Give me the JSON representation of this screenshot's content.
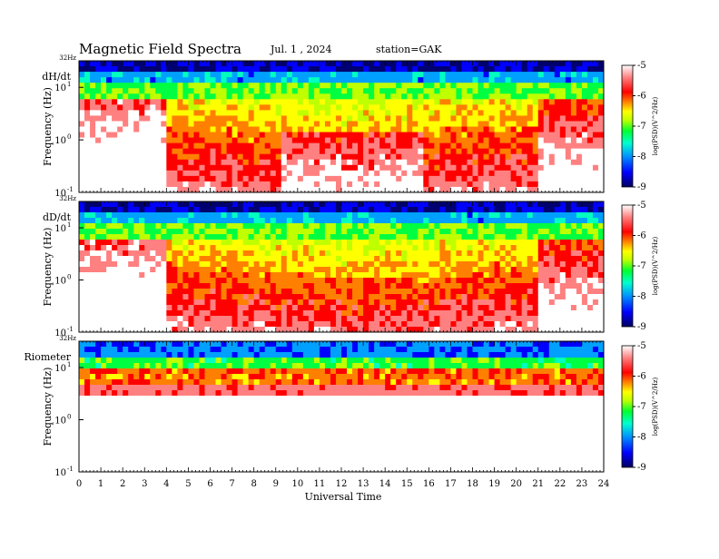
{
  "header": {
    "title": "Magnetic  Field  Spectra",
    "date": "Jul.  1  , 2024",
    "station": "station=GAK"
  },
  "colors": {
    "scale": [
      "#000070",
      "#0000ff",
      "#00a0ff",
      "#00ffc0",
      "#00ff40",
      "#c0ff00",
      "#ffff00",
      "#ff8000",
      "#ff0000",
      "#ff8080",
      "#ffffff"
    ]
  },
  "chart_data": [
    {
      "type": "heatmap",
      "signal": "dH/dt",
      "ylabel": "Frequency (Hz)",
      "xlabel": "Universal Time",
      "top_label": "32Hz",
      "y_ticks": [
        {
          "label": "10",
          "exp": "1"
        },
        {
          "label": "10",
          "exp": "0"
        },
        {
          "label": "10",
          "exp": "-1"
        }
      ],
      "x_ticks": [
        "0",
        "1",
        "2",
        "3",
        "4",
        "5",
        "6",
        "7",
        "8",
        "9",
        "10",
        "11",
        "12",
        "13",
        "14",
        "15",
        "16",
        "17",
        "18",
        "19",
        "20",
        "21",
        "22",
        "23",
        "24"
      ],
      "xlim": [
        0,
        24
      ],
      "ylim": [
        0.1,
        32
      ],
      "yscale": "log",
      "colorbar": {
        "label": "log(PSD)(V^2/Hz)",
        "ticks": [
          "-5",
          "-6",
          "-7",
          "-8",
          "-9"
        ],
        "range": [
          -9,
          -5
        ]
      }
    },
    {
      "type": "heatmap",
      "signal": "dD/dt",
      "ylabel": "Frequency (Hz)",
      "xlabel": "Universal Time",
      "top_label": "32Hz",
      "y_ticks": [
        {
          "label": "10",
          "exp": "1"
        },
        {
          "label": "10",
          "exp": "0"
        },
        {
          "label": "10",
          "exp": "-1"
        }
      ],
      "x_ticks": [
        "0",
        "1",
        "2",
        "3",
        "4",
        "5",
        "6",
        "7",
        "8",
        "9",
        "10",
        "11",
        "12",
        "13",
        "14",
        "15",
        "16",
        "17",
        "18",
        "19",
        "20",
        "21",
        "22",
        "23",
        "24"
      ],
      "xlim": [
        0,
        24
      ],
      "ylim": [
        0.1,
        32
      ],
      "yscale": "log",
      "colorbar": {
        "label": "log(PSD)(V^2/Hz)",
        "ticks": [
          "-5",
          "-6",
          "-7",
          "-8",
          "-9"
        ],
        "range": [
          -9,
          -5
        ]
      }
    },
    {
      "type": "heatmap",
      "signal": "Riometer",
      "ylabel": "Frequency (Hz)",
      "xlabel": "Universal Time",
      "top_label": "32Hz",
      "y_ticks": [
        {
          "label": "10",
          "exp": "1"
        },
        {
          "label": "10",
          "exp": "0"
        },
        {
          "label": "10",
          "exp": "-1"
        }
      ],
      "x_ticks": [
        "0",
        "1",
        "2",
        "3",
        "4",
        "5",
        "6",
        "7",
        "8",
        "9",
        "10",
        "11",
        "12",
        "13",
        "14",
        "15",
        "16",
        "17",
        "18",
        "19",
        "20",
        "21",
        "22",
        "23",
        "24"
      ],
      "xlim": [
        0,
        24
      ],
      "ylim": [
        0.1,
        32
      ],
      "yscale": "log",
      "colorbar": {
        "label": "log(PSD)(V^2/Hz)",
        "ticks": [
          "-5",
          "-6",
          "-7",
          "-8",
          "-9"
        ],
        "range": [
          -9,
          -5
        ]
      }
    }
  ],
  "xaxis": {
    "label": "Universal Time"
  }
}
